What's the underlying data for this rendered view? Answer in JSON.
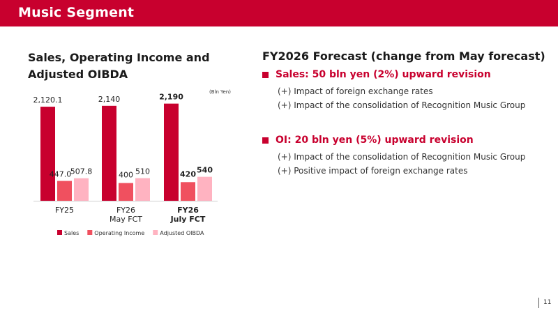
{
  "header": {
    "title": "Music Segment"
  },
  "chart_data": {
    "type": "bar",
    "title": "Sales, Operating Income and Adjusted OIBDA",
    "unit_note": "(Bln Yen)",
    "categories": [
      "FY25",
      "FY26\nMay FCT",
      "FY26\nJuly FCT"
    ],
    "bold_categories": [
      false,
      false,
      true
    ],
    "series": [
      {
        "name": "Sales",
        "values": [
          2120.1,
          2140,
          2190
        ],
        "labels": [
          "2,120.1",
          "2,140",
          "2,190"
        ],
        "color": "#c8002e"
      },
      {
        "name": "Operating Income",
        "values": [
          447.0,
          400,
          420
        ],
        "labels": [
          "447.0",
          "400",
          "420"
        ],
        "color": "#f0505f"
      },
      {
        "name": "Adjusted OIBDA",
        "values": [
          507.8,
          510,
          540
        ],
        "labels": [
          "507.8",
          "510",
          "540"
        ],
        "color": "#ffb3c1"
      }
    ],
    "ylim": [
      0,
      2200
    ],
    "legend": "bottom"
  },
  "forecast": {
    "title": "FY2026 Forecast (change from May forecast)",
    "sales_headline": "Sales: 50 bln yen (2%) upward revision",
    "sales_items": [
      "(+) Impact of foreign exchange rates",
      "(+) Impact of the consolidation of Recognition Music Group"
    ],
    "oi_headline": "OI: 20 bln yen (5%) upward revision",
    "oi_items": [
      "(+) Impact of the consolidation of Recognition Music Group",
      "(+) Positive impact of foreign exchange rates"
    ]
  },
  "footer": {
    "page": "11"
  }
}
